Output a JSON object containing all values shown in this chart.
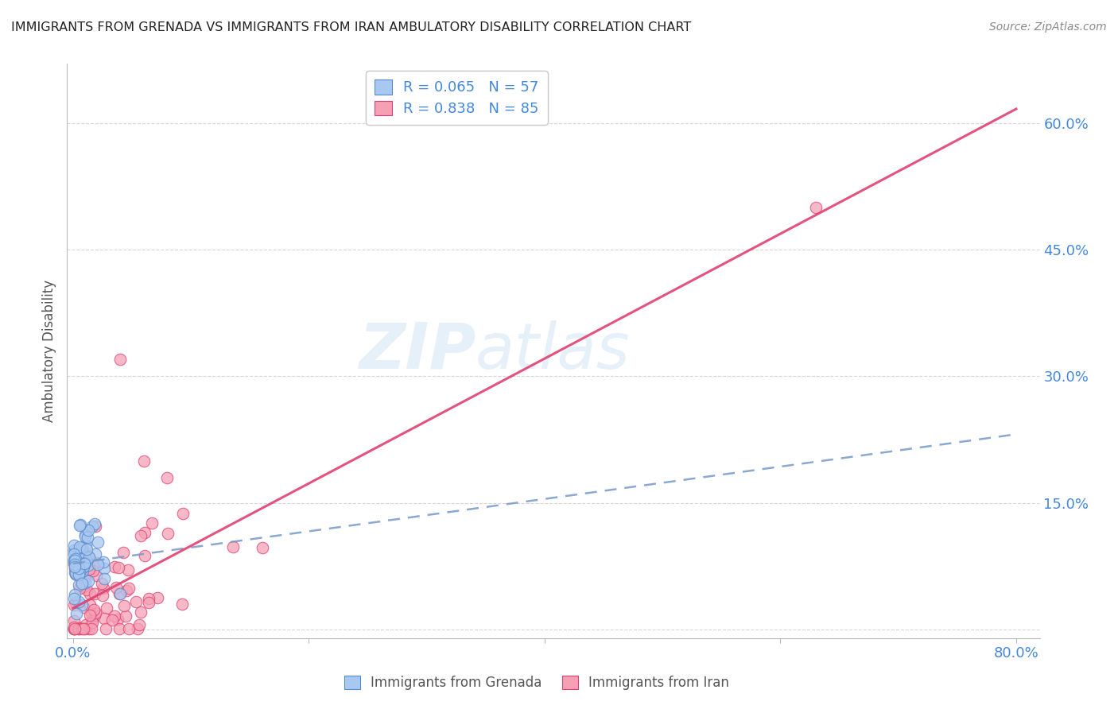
{
  "title": "IMMIGRANTS FROM GRENADA VS IMMIGRANTS FROM IRAN AMBULATORY DISABILITY CORRELATION CHART",
  "source": "Source: ZipAtlas.com",
  "xlabel_ticks": [
    "0.0%",
    "",
    "",
    "",
    "80.0%"
  ],
  "xlabel_tick_vals": [
    0.0,
    0.2,
    0.4,
    0.6,
    0.8
  ],
  "ylabel": "Ambulatory Disability",
  "ylabel_ticks": [
    "",
    "15.0%",
    "30.0%",
    "45.0%",
    "60.0%"
  ],
  "ylabel_tick_vals": [
    0.0,
    0.15,
    0.3,
    0.45,
    0.6
  ],
  "xlim": [
    -0.005,
    0.82
  ],
  "ylim": [
    -0.01,
    0.67
  ],
  "grenada_R": 0.065,
  "grenada_N": 57,
  "iran_R": 0.838,
  "iran_N": 85,
  "grenada_color": "#a8c8f0",
  "iran_color": "#f5a0b5",
  "grenada_edge_color": "#5588cc",
  "iran_edge_color": "#e04070",
  "grenada_line_color": "#7799cc",
  "iran_line_color": "#e04070",
  "legend_label_grenada": "Immigrants from Grenada",
  "legend_label_iran": "Immigrants from Iran",
  "watermark_zip": "ZIP",
  "watermark_atlas": "atlas",
  "background_color": "#ffffff",
  "grid_color": "#cccccc",
  "title_color": "#222222",
  "tick_label_color": "#4488dd",
  "source_color": "#888888"
}
